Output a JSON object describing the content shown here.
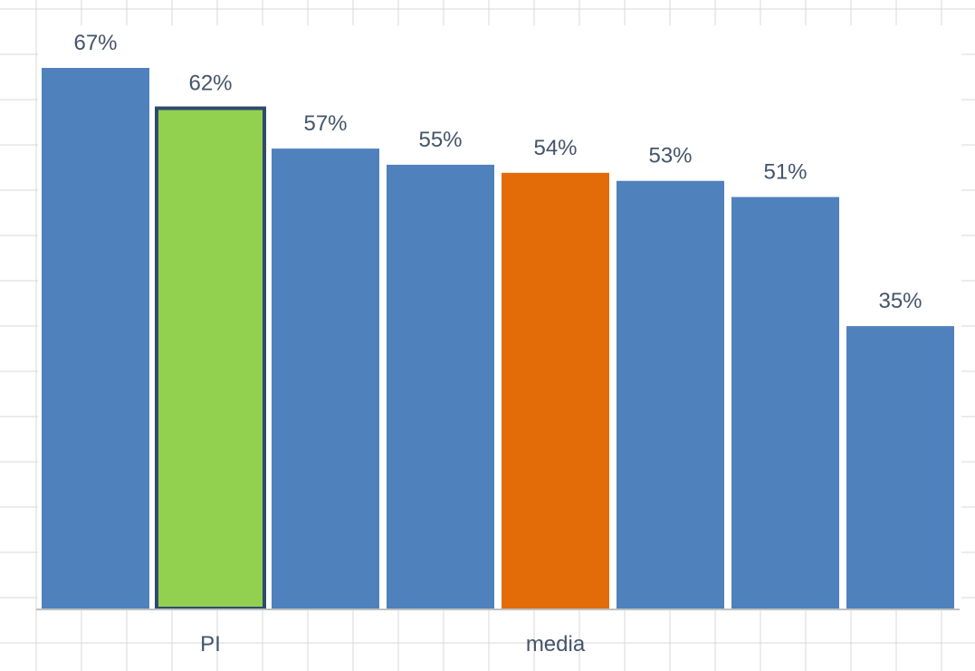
{
  "chart_data": {
    "type": "bar",
    "categories": [
      "",
      "PI",
      "",
      "",
      "media",
      "",
      "",
      ""
    ],
    "values": [
      67,
      62,
      57,
      55,
      54,
      53,
      51,
      35
    ],
    "labels": [
      "67%",
      "62%",
      "57%",
      "55%",
      "54%",
      "53%",
      "51%",
      "35%"
    ],
    "title": "",
    "xlabel": "",
    "ylabel": "",
    "ylim": [
      0,
      70
    ],
    "value_format": "percent",
    "colors": {
      "default": "#4f81bd",
      "highlight_pi": "#92d050",
      "highlight_pi_border": "#2f4a6f",
      "highlight_media": "#e36c09",
      "labels": "#44546a"
    },
    "bar_colors": [
      "default",
      "highlight_pi",
      "default",
      "default",
      "highlight_media",
      "default",
      "default",
      "default"
    ],
    "grid": true,
    "legend": "none"
  }
}
